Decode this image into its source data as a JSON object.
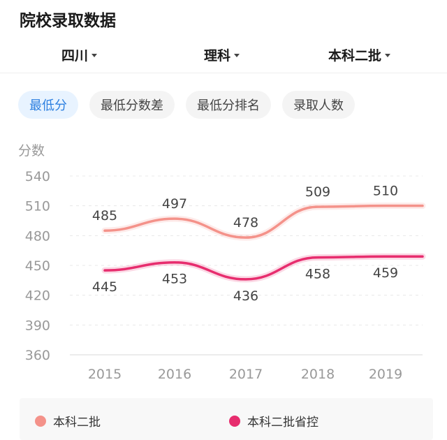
{
  "header": {
    "title": "院校录取数据"
  },
  "filters": [
    {
      "label": "四川"
    },
    {
      "label": "理科"
    },
    {
      "label": "本科二批"
    }
  ],
  "tabs": [
    {
      "label": "最低分"
    },
    {
      "label": "最低分数差"
    },
    {
      "label": "最低分排名"
    },
    {
      "label": "录取人数"
    }
  ],
  "colors": {
    "accent": "#2c7fe0",
    "series1": "#f4928a",
    "series2": "#e72d6e"
  },
  "chart_data": {
    "type": "line",
    "ylabel": "分数",
    "xlabel": "",
    "x": [
      "2015",
      "2016",
      "2017",
      "2018",
      "2019"
    ],
    "ylim": [
      360,
      540
    ],
    "yticks": [
      360,
      390,
      420,
      450,
      480,
      510,
      540
    ],
    "grid": true,
    "legend": "bottom",
    "series": [
      {
        "name": "本科二批",
        "values": [
          485,
          497,
          478,
          509,
          510
        ],
        "color": "#f4928a"
      },
      {
        "name": "本科二批省控",
        "values": [
          445,
          453,
          436,
          458,
          459
        ],
        "color": "#e72d6e"
      }
    ]
  }
}
